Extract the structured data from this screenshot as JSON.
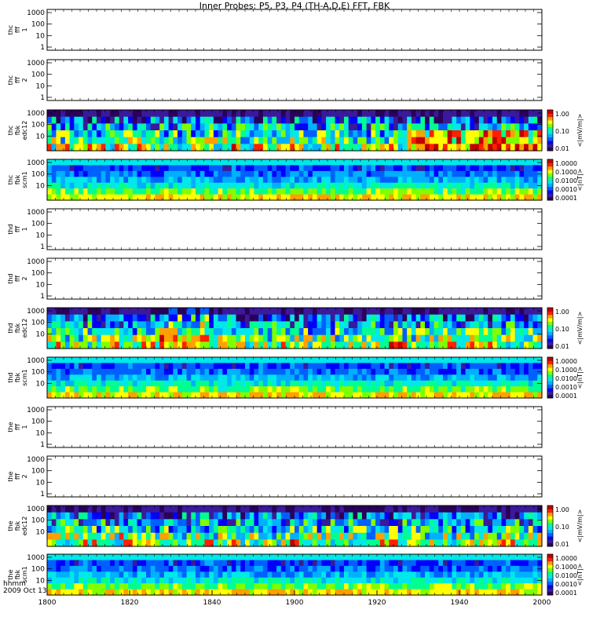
{
  "title": "Inner Probes: P5, P3, P4 (TH-A,D,E) FFT, FBK",
  "x_axis_info": {
    "line1": "hhmm",
    "line2": "2009 Oct 13"
  },
  "colors": {
    "colormap": [
      "#2a005a",
      "#3a1a9a",
      "#0000ff",
      "#0060ff",
      "#00b0ff",
      "#00e8e8",
      "#00ff90",
      "#80ff00",
      "#ffff00",
      "#ffa000",
      "#ff2000",
      "#c00000"
    ]
  },
  "chart_data": {
    "type": "heatmap",
    "title": "Inner Probes: P5, P3, P4 (TH-A,D,E) FFT, FBK",
    "x": {
      "ticks": [
        "1800",
        "1820",
        "1840",
        "1900",
        "1920",
        "1940",
        "2000"
      ],
      "range_minutes_hhmm": [
        "1800",
        "2000"
      ]
    },
    "panels": [
      {
        "ylabel": [
          "thc",
          "fff",
          "1"
        ],
        "y_ticks": [
          "1000",
          "100",
          "10",
          "1"
        ],
        "y_scale": "log",
        "ylim": [
          1,
          1000
        ],
        "content": "empty"
      },
      {
        "ylabel": [
          "thc",
          "fff",
          "2"
        ],
        "y_ticks": [
          "1000",
          "100",
          "10",
          "1"
        ],
        "y_scale": "log",
        "ylim": [
          1,
          1000
        ],
        "content": "empty"
      },
      {
        "ylabel": [
          "thc",
          "fbk",
          "edc12"
        ],
        "y_ticks": [
          "1000",
          "100",
          "10"
        ],
        "y_scale": "log",
        "content": "spectrogram",
        "colorbar": {
          "ticks": [
            "1.00",
            "0.10",
            "0.01"
          ],
          "label": "<|mV/m|>"
        }
      },
      {
        "ylabel": [
          "thc",
          "fbk",
          "scm1"
        ],
        "y_ticks": [
          "1000",
          "100",
          "10"
        ],
        "y_scale": "log",
        "content": "spectrogram",
        "colorbar": {
          "ticks": [
            "1.0000",
            "0.1000",
            "0.0100",
            "0.0010",
            "0.0001"
          ],
          "label": "<|nT|>"
        }
      },
      {
        "ylabel": [
          "thd",
          "fff",
          "1"
        ],
        "y_ticks": [
          "1000",
          "100",
          "10",
          "1"
        ],
        "y_scale": "log",
        "ylim": [
          1,
          1000
        ],
        "content": "empty"
      },
      {
        "ylabel": [
          "thd",
          "fff",
          "2"
        ],
        "y_ticks": [
          "1000",
          "100",
          "10",
          "1"
        ],
        "y_scale": "log",
        "ylim": [
          1,
          1000
        ],
        "content": "empty"
      },
      {
        "ylabel": [
          "thd",
          "fbk",
          "edc12"
        ],
        "y_ticks": [
          "1000",
          "100",
          "10"
        ],
        "y_scale": "log",
        "content": "spectrogram",
        "colorbar": {
          "ticks": [
            "1.00",
            "0.10",
            "0.01"
          ],
          "label": "<|mV/m|>"
        }
      },
      {
        "ylabel": [
          "thd",
          "fbk",
          "scm1"
        ],
        "y_ticks": [
          "1000",
          "100",
          "10"
        ],
        "y_scale": "log",
        "content": "spectrogram",
        "colorbar": {
          "ticks": [
            "1.0000",
            "0.1000",
            "0.0100",
            "0.0010",
            "0.0001"
          ],
          "label": "<|nT|>"
        }
      },
      {
        "ylabel": [
          "the",
          "fff",
          "1"
        ],
        "y_ticks": [
          "1000",
          "100",
          "10",
          "1"
        ],
        "y_scale": "log",
        "ylim": [
          1,
          1000
        ],
        "content": "empty"
      },
      {
        "ylabel": [
          "the",
          "fff",
          "2"
        ],
        "y_ticks": [
          "1000",
          "100",
          "10",
          "1"
        ],
        "y_scale": "log",
        "ylim": [
          1,
          1000
        ],
        "content": "empty"
      },
      {
        "ylabel": [
          "the",
          "fbk",
          "edc12"
        ],
        "y_ticks": [
          "1000",
          "100",
          "10"
        ],
        "y_scale": "log",
        "content": "spectrogram",
        "colorbar": {
          "ticks": [
            "1.00",
            "0.10",
            "0.01"
          ],
          "label": "<|mV/m|>"
        }
      },
      {
        "ylabel": [
          "the",
          "fbk",
          "scm1"
        ],
        "y_ticks": [
          "1000",
          "100",
          "10"
        ],
        "y_scale": "log",
        "content": "spectrogram",
        "colorbar": {
          "ticks": [
            "1.0000",
            "0.1000",
            "0.0100",
            "0.0010",
            "0.0001"
          ],
          "label": "<|nT|>"
        }
      }
    ]
  }
}
